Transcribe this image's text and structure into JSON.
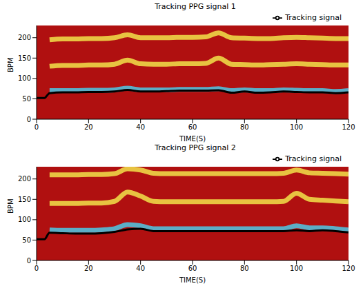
{
  "chart_data": [
    {
      "type": "line",
      "title": "Tracking PPG signal 1",
      "x_label": "TIME(S)",
      "y_label": "BPM",
      "x": [
        0,
        3,
        5,
        10,
        15,
        20,
        25,
        30,
        35,
        40,
        45,
        50,
        55,
        60,
        65,
        70,
        75,
        80,
        85,
        90,
        95,
        100,
        105,
        110,
        115,
        120
      ],
      "xlim": [
        0,
        120
      ],
      "xticks": [
        0,
        20,
        40,
        60,
        80,
        100,
        120
      ],
      "ylim": [
        0,
        230
      ],
      "yticks": [
        0,
        50,
        100,
        150,
        200
      ],
      "grid": false,
      "legend": "top right",
      "series": [
        {
          "name": "Tracking signal",
          "color": "#000000",
          "values": [
            52,
            52,
            64,
            66,
            66,
            67,
            67,
            68,
            72,
            68,
            68,
            69,
            70,
            70,
            70,
            71,
            65,
            68,
            65,
            66,
            68,
            67,
            66,
            66,
            64,
            66
          ]
        }
      ],
      "bands": [
        {
          "color": "#4ec9e6",
          "values": [
            null,
            null,
            70,
            70,
            70,
            71,
            71,
            72,
            76,
            72,
            72,
            72,
            73,
            73,
            73,
            75,
            70,
            72,
            70,
            70,
            72,
            71,
            70,
            70,
            68,
            70
          ]
        },
        {
          "color": "#f2e34a",
          "values": [
            null,
            null,
            130,
            132,
            132,
            133,
            133,
            135,
            145,
            136,
            135,
            135,
            136,
            136,
            137,
            150,
            135,
            134,
            133,
            134,
            135,
            136,
            135,
            134,
            133,
            133
          ]
        },
        {
          "color": "#f2e34a",
          "values": [
            null,
            null,
            195,
            197,
            197,
            198,
            198,
            200,
            207,
            200,
            200,
            200,
            201,
            201,
            202,
            212,
            200,
            199,
            198,
            198,
            200,
            201,
            200,
            199,
            198,
            198
          ]
        }
      ]
    },
    {
      "type": "line",
      "title": "Tracking PPG signal 2",
      "x_label": "TIME(S)",
      "y_label": "BPM",
      "x": [
        0,
        3,
        5,
        10,
        15,
        20,
        25,
        30,
        35,
        40,
        45,
        50,
        55,
        60,
        65,
        70,
        75,
        80,
        85,
        90,
        95,
        100,
        105,
        110,
        115,
        120
      ],
      "xlim": [
        0,
        120
      ],
      "xticks": [
        0,
        20,
        40,
        60,
        80,
        100,
        120
      ],
      "ylim": [
        0,
        230
      ],
      "yticks": [
        0,
        50,
        100,
        150,
        200
      ],
      "grid": false,
      "legend": "top right",
      "series": [
        {
          "name": "Tracking signal",
          "color": "#000000",
          "values": [
            52,
            52,
            68,
            67,
            66,
            66,
            67,
            70,
            76,
            78,
            72,
            72,
            72,
            72,
            72,
            72,
            72,
            72,
            72,
            72,
            72,
            74,
            72,
            74,
            72,
            69
          ]
        }
      ],
      "bands": [
        {
          "color": "#4ec9e6",
          "values": [
            null,
            null,
            75,
            74,
            74,
            74,
            75,
            78,
            88,
            85,
            78,
            78,
            78,
            78,
            78,
            78,
            78,
            78,
            78,
            78,
            78,
            85,
            80,
            80,
            78,
            75
          ]
        },
        {
          "color": "#f2e34a",
          "values": [
            null,
            null,
            140,
            140,
            140,
            141,
            141,
            145,
            168,
            158,
            145,
            144,
            144,
            144,
            144,
            144,
            144,
            144,
            144,
            144,
            145,
            165,
            150,
            148,
            146,
            144
          ]
        },
        {
          "color": "#f2e34a",
          "values": [
            null,
            null,
            210,
            210,
            210,
            211,
            211,
            213,
            225,
            222,
            214,
            213,
            213,
            213,
            213,
            213,
            213,
            213,
            213,
            213,
            214,
            222,
            215,
            214,
            213,
            212
          ]
        }
      ]
    }
  ]
}
